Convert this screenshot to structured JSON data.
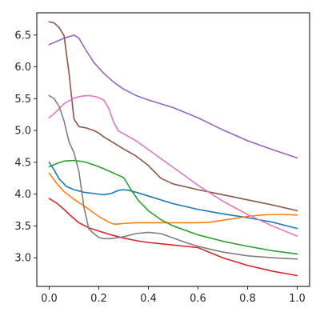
{
  "chart_data": {
    "type": "line",
    "title": "",
    "xlabel": "",
    "ylabel": "",
    "xlim": [
      -0.05,
      1.05
    ],
    "ylim": [
      2.55,
      6.85
    ],
    "grid": false,
    "legend": "none",
    "x_ticks": [
      {
        "value": 0.0,
        "label": "0.0"
      },
      {
        "value": 0.2,
        "label": "0.2"
      },
      {
        "value": 0.4,
        "label": "0.4"
      },
      {
        "value": 0.6,
        "label": "0.6"
      },
      {
        "value": 0.8,
        "label": "0.8"
      },
      {
        "value": 1.0,
        "label": "1.0"
      }
    ],
    "y_ticks": [
      {
        "value": 3.0,
        "label": "3.0"
      },
      {
        "value": 3.5,
        "label": "3.5"
      },
      {
        "value": 4.0,
        "label": "4.0"
      },
      {
        "value": 4.5,
        "label": "4.5"
      },
      {
        "value": 5.0,
        "label": "5.0"
      },
      {
        "value": 5.5,
        "label": "5.5"
      },
      {
        "value": 6.0,
        "label": "6.0"
      },
      {
        "value": 6.5,
        "label": "6.5"
      }
    ],
    "series": [
      {
        "color": "#1f77b4",
        "x": [
          0.0,
          0.02,
          0.04,
          0.07,
          0.1,
          0.14,
          0.18,
          0.22,
          0.25,
          0.28,
          0.3,
          0.32,
          0.35,
          0.4,
          0.5,
          0.6,
          0.7,
          0.8,
          0.9,
          1.0
        ],
        "y": [
          4.5,
          4.38,
          4.24,
          4.12,
          4.07,
          4.03,
          4.01,
          3.99,
          4.01,
          4.06,
          4.07,
          4.06,
          4.03,
          3.97,
          3.85,
          3.76,
          3.69,
          3.63,
          3.56,
          3.46
        ]
      },
      {
        "color": "#ff7f0e",
        "x": [
          0.0,
          0.03,
          0.06,
          0.1,
          0.15,
          0.2,
          0.24,
          0.26,
          0.28,
          0.3,
          0.35,
          0.4,
          0.5,
          0.6,
          0.65,
          0.7,
          0.75,
          0.8,
          0.85,
          0.9,
          0.95,
          1.0
        ],
        "y": [
          4.33,
          4.17,
          4.04,
          3.92,
          3.79,
          3.65,
          3.56,
          3.53,
          3.53,
          3.54,
          3.55,
          3.55,
          3.55,
          3.55,
          3.56,
          3.59,
          3.62,
          3.65,
          3.67,
          3.68,
          3.68,
          3.67
        ]
      },
      {
        "color": "#2ca02c",
        "x": [
          0.0,
          0.03,
          0.06,
          0.1,
          0.14,
          0.18,
          0.22,
          0.26,
          0.3,
          0.31,
          0.33,
          0.36,
          0.4,
          0.45,
          0.5,
          0.6,
          0.7,
          0.8,
          0.9,
          1.0
        ],
        "y": [
          4.43,
          4.48,
          4.52,
          4.53,
          4.51,
          4.46,
          4.4,
          4.33,
          4.26,
          4.2,
          4.07,
          3.9,
          3.74,
          3.6,
          3.5,
          3.36,
          3.26,
          3.18,
          3.11,
          3.06
        ]
      },
      {
        "color": "#d62728",
        "x": [
          0.0,
          0.03,
          0.06,
          0.09,
          0.12,
          0.16,
          0.2,
          0.25,
          0.3,
          0.35,
          0.4,
          0.45,
          0.5,
          0.55,
          0.6,
          0.65,
          0.7,
          0.8,
          0.9,
          1.0
        ],
        "y": [
          3.93,
          3.86,
          3.76,
          3.65,
          3.55,
          3.47,
          3.42,
          3.36,
          3.31,
          3.27,
          3.24,
          3.22,
          3.2,
          3.18,
          3.16,
          3.08,
          3.0,
          2.88,
          2.79,
          2.72
        ]
      },
      {
        "color": "#9467bd",
        "x": [
          0.0,
          0.03,
          0.06,
          0.1,
          0.12,
          0.15,
          0.18,
          0.22,
          0.26,
          0.3,
          0.35,
          0.4,
          0.45,
          0.5,
          0.6,
          0.7,
          0.8,
          0.9,
          1.0
        ],
        "y": [
          6.35,
          6.4,
          6.45,
          6.5,
          6.45,
          6.25,
          6.07,
          5.9,
          5.76,
          5.65,
          5.55,
          5.48,
          5.42,
          5.36,
          5.2,
          5.01,
          4.84,
          4.7,
          4.57
        ]
      },
      {
        "color": "#8c564b",
        "x": [
          0.0,
          0.02,
          0.04,
          0.06,
          0.08,
          0.1,
          0.12,
          0.15,
          0.18,
          0.2,
          0.22,
          0.25,
          0.3,
          0.35,
          0.4,
          0.43,
          0.45,
          0.5,
          0.6,
          0.7,
          0.8,
          0.9,
          1.0
        ],
        "y": [
          6.71,
          6.69,
          6.62,
          6.49,
          5.9,
          5.18,
          5.06,
          5.04,
          5.0,
          4.96,
          4.9,
          4.83,
          4.71,
          4.6,
          4.45,
          4.33,
          4.25,
          4.16,
          4.07,
          3.99,
          3.91,
          3.83,
          3.74
        ]
      },
      {
        "color": "#e377c2",
        "x": [
          0.0,
          0.03,
          0.06,
          0.1,
          0.13,
          0.16,
          0.19,
          0.22,
          0.24,
          0.26,
          0.28,
          0.3,
          0.35,
          0.4,
          0.5,
          0.6,
          0.7,
          0.8,
          0.9,
          1.0
        ],
        "y": [
          5.2,
          5.3,
          5.42,
          5.51,
          5.54,
          5.55,
          5.53,
          5.48,
          5.35,
          5.13,
          4.99,
          4.95,
          4.84,
          4.7,
          4.42,
          4.14,
          3.89,
          3.68,
          3.5,
          3.34
        ]
      },
      {
        "color": "#7f7f7f",
        "x": [
          0.0,
          0.02,
          0.04,
          0.06,
          0.08,
          0.1,
          0.12,
          0.14,
          0.16,
          0.18,
          0.2,
          0.22,
          0.25,
          0.3,
          0.35,
          0.4,
          0.45,
          0.5,
          0.55,
          0.6,
          0.7,
          0.8,
          0.9,
          1.0
        ],
        "y": [
          5.55,
          5.5,
          5.38,
          5.15,
          4.82,
          4.65,
          4.35,
          3.8,
          3.45,
          3.38,
          3.32,
          3.3,
          3.3,
          3.33,
          3.38,
          3.4,
          3.38,
          3.31,
          3.24,
          3.18,
          3.09,
          3.03,
          3.0,
          2.98
        ]
      }
    ]
  }
}
